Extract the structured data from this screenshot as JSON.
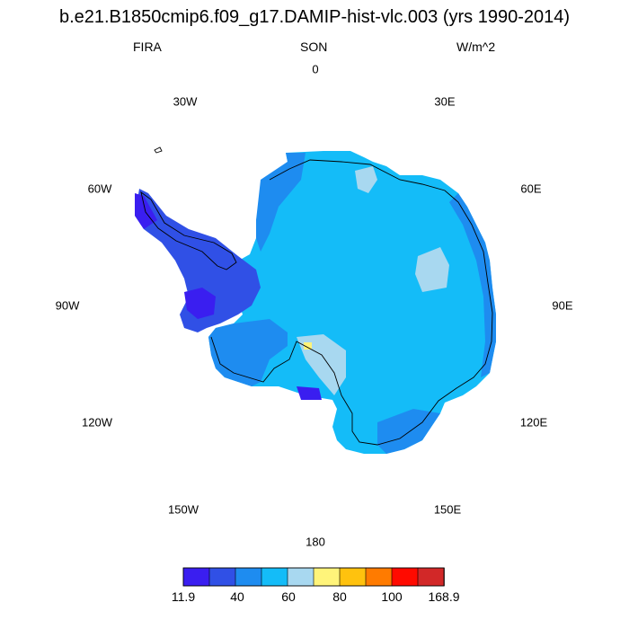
{
  "title": "b.e21.B1850cmip6.f09_g17.DAMIP-hist-vlc.003 (yrs 1990-2014)",
  "subtitle_left": "FIRA",
  "subtitle_center": "SON",
  "subtitle_right": "W/m^2",
  "longitude_labels": [
    "0",
    "30E",
    "60E",
    "90E",
    "120E",
    "150E",
    "180",
    "150W",
    "120W",
    "90W",
    "60W",
    "30W"
  ],
  "colorbar": {
    "colors": [
      "#3a1ef0",
      "#3050e6",
      "#1e8cf0",
      "#14bcf8",
      "#a8d8f0",
      "#fff47a",
      "#ffc20e",
      "#ff7b00",
      "#ff0a00",
      "#d22828"
    ],
    "labels": [
      "11.9",
      "40",
      "60",
      "80",
      "100",
      "168.9"
    ]
  },
  "map_colors": {
    "dominant": "#14bcf8",
    "coast_lowlands": "#1e8cf0",
    "peninsula": "#3050e6",
    "extreme_low": "#3a1ef0",
    "light_patches": "#a8d8f0",
    "hotspot": "#fff47a"
  }
}
